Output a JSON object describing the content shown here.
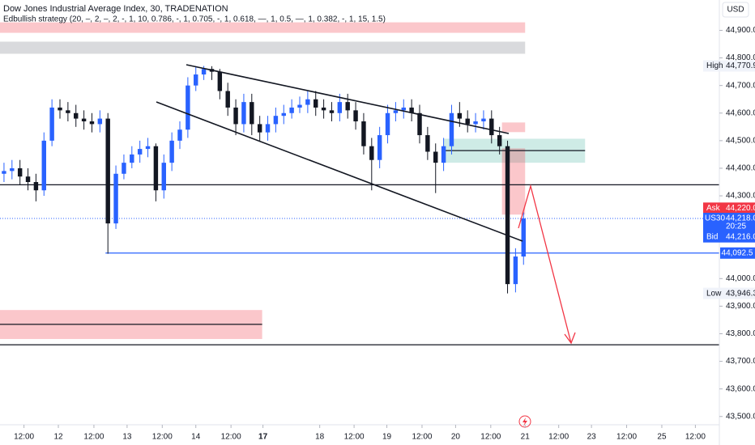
{
  "chart_data": {
    "type": "candlestick",
    "title": "Dow Jones Industrial Average Index, 30, TRADENATION",
    "indicator": "Edbullish strategy (20, –, 2, –, 2, -, 1, 10, 0.786, -, 1, 0.705, -, 1, 0.618, —, 1, 0.5, —, 1, 0.382, -, 1, 15, 1.5)",
    "currency": "USD",
    "xlim": [
      0,
      90
    ],
    "xticks": [
      {
        "value": 3,
        "label": "12:00"
      },
      {
        "value": 7.3,
        "label": "12"
      },
      {
        "value": 11.75,
        "label": "12:00"
      },
      {
        "value": 15.9,
        "label": "13"
      },
      {
        "value": 20.3,
        "label": "12:00"
      },
      {
        "value": 24.5,
        "label": "14"
      },
      {
        "value": 28.9,
        "label": "12:00"
      },
      {
        "value": 32.9,
        "label": "17",
        "bold": true
      },
      {
        "value": 40,
        "label": "18"
      },
      {
        "value": 44.3,
        "label": "12:00"
      },
      {
        "value": 48.4,
        "label": "19"
      },
      {
        "value": 52.8,
        "label": "12:00"
      },
      {
        "value": 57,
        "label": "20"
      },
      {
        "value": 61.4,
        "label": "12:00"
      },
      {
        "value": 65.7,
        "label": "21"
      },
      {
        "value": 69.9,
        "label": "12:00"
      },
      {
        "value": 74,
        "label": "23"
      },
      {
        "value": 78.4,
        "label": "12:00"
      },
      {
        "value": 82.8,
        "label": "25"
      },
      {
        "value": 87,
        "label": "12:00"
      }
    ],
    "ylim": [
      43470,
      45010
    ],
    "yticks": [
      {
        "value": 44900,
        "label": "44,900.0"
      },
      {
        "value": 44800,
        "label": "44,800.0"
      },
      {
        "value": 44700,
        "label": "44,700.0"
      },
      {
        "value": 44600,
        "label": "44,600.0"
      },
      {
        "value": 44500,
        "label": "44,500.0"
      },
      {
        "value": 44400,
        "label": "44,400.0"
      },
      {
        "value": 44300,
        "label": "44,300.0"
      },
      {
        "value": 44000,
        "label": "44,000.0"
      },
      {
        "value": 43900,
        "label": "43,900.0"
      },
      {
        "value": 43800,
        "label": "43,800.0"
      },
      {
        "value": 43700,
        "label": "43,700.0"
      },
      {
        "value": 43600,
        "label": "43,600.0"
      },
      {
        "value": 43500,
        "label": "43,500.0"
      }
    ],
    "up_color": "#2962ff",
    "down_color": "#131722",
    "open": [
      44380,
      44390,
      44400,
      44370,
      44350,
      44320,
      44500,
      44620,
      44610,
      44600,
      44580,
      44570,
      44560,
      44580,
      44200,
      44380,
      44420,
      44450,
      44470,
      44480,
      44320,
      44420,
      44500,
      44540,
      44700,
      44740,
      44760,
      44750,
      44680,
      44620,
      44560,
      44640,
      44560,
      44530,
      44560,
      44590,
      44600,
      44620,
      44630,
      44650,
      44620,
      44610,
      44600,
      44640,
      44610,
      44570,
      44480,
      44430,
      44520,
      44600,
      44610,
      44620,
      44600,
      44520,
      44460,
      44420,
      44480,
      44600,
      44580,
      44560,
      44570,
      44580,
      44520,
      44480,
      43980,
      44080
    ],
    "high": [
      44420,
      44430,
      44430,
      44400,
      44380,
      44530,
      44650,
      44650,
      44640,
      44630,
      44610,
      44600,
      44610,
      44600,
      44410,
      44450,
      44480,
      44500,
      44510,
      44490,
      44450,
      44530,
      44570,
      44730,
      44770,
      44770.9,
      44770,
      44760,
      44710,
      44650,
      44670,
      44670,
      44590,
      44590,
      44620,
      44630,
      44650,
      44660,
      44680,
      44680,
      44650,
      44640,
      44670,
      44670,
      44640,
      44600,
      44510,
      44550,
      44630,
      44640,
      44650,
      44650,
      44630,
      44550,
      44490,
      44510,
      44630,
      44640,
      44610,
      44600,
      44610,
      44610,
      44550,
      44500,
      44110,
      44240
    ],
    "low": [
      44350,
      44360,
      44340,
      44320,
      44280,
      44300,
      44480,
      44580,
      44570,
      44550,
      44540,
      44530,
      44530,
      44090,
      44180,
      44360,
      44400,
      44420,
      44440,
      44280,
      44290,
      44390,
      44470,
      44510,
      44680,
      44720,
      44720,
      44650,
      44590,
      44520,
      44530,
      44520,
      44500,
      44500,
      44530,
      44560,
      44580,
      44600,
      44600,
      44590,
      44580,
      44570,
      44570,
      44580,
      44540,
      44450,
      44320,
      44400,
      44490,
      44570,
      44580,
      44570,
      44490,
      44430,
      44310,
      44390,
      44450,
      44550,
      44530,
      44530,
      44540,
      44490,
      44450,
      43946.3,
      43950,
      44050
    ],
    "close": [
      44390,
      44400,
      44370,
      44350,
      44320,
      44500,
      44620,
      44610,
      44600,
      44580,
      44570,
      44560,
      44580,
      44200,
      44380,
      44420,
      44450,
      44470,
      44480,
      44320,
      44420,
      44500,
      44540,
      44700,
      44740,
      44760,
      44750,
      44680,
      44620,
      44560,
      44640,
      44560,
      44530,
      44560,
      44590,
      44600,
      44620,
      44630,
      44650,
      44620,
      44610,
      44600,
      44640,
      44610,
      44570,
      44480,
      44430,
      44520,
      44600,
      44610,
      44620,
      44600,
      44520,
      44460,
      44420,
      44480,
      44600,
      44580,
      44560,
      44570,
      44580,
      44520,
      44480,
      43980,
      44080,
      44218
    ],
    "zones": [
      {
        "x": [
          0,
          65.7
        ],
        "y": [
          44891,
          44929
        ],
        "color": "rgba(242,54,69,0.28)"
      },
      {
        "x": [
          0,
          65.7
        ],
        "y": [
          44815,
          44859
        ],
        "color": "rgba(120,123,134,0.28)"
      },
      {
        "x": [
          0,
          32.8
        ],
        "y": [
          43781,
          43886
        ],
        "color": "rgba(242,54,69,0.28)"
      },
      {
        "x": [
          55.5,
          73.2
        ],
        "y": [
          44420,
          44507
        ],
        "color": "rgba(8,153,129,0.2)"
      },
      {
        "x": [
          62.8,
          65.7
        ],
        "y": [
          44531,
          44566
        ],
        "color": "rgba(242,54,69,0.28)"
      },
      {
        "x": [
          62.8,
          65.7
        ],
        "y": [
          44232,
          44472
        ],
        "color": "rgba(242,54,69,0.28)"
      }
    ],
    "levels": [
      {
        "x": [
          0,
          90
        ],
        "value": 44340,
        "color": "#131722"
      },
      {
        "x": [
          13.2,
          90
        ],
        "value": 44092.5,
        "color": "#2962ff",
        "label": "44,092.5"
      },
      {
        "x": [
          0,
          90
        ],
        "value": 43760,
        "color": "#131722"
      },
      {
        "x": [
          0,
          32.8
        ],
        "value": 43834,
        "color": "#131722"
      },
      {
        "x": [
          55.5,
          73.2
        ],
        "value": 44464,
        "color": "#131722"
      }
    ],
    "high_marker": {
      "name": "High",
      "value": 44770.9,
      "label": "44,770.9"
    },
    "low_marker": {
      "name": "Low",
      "value": 43946.3,
      "label": "43,946.3"
    },
    "ask": {
      "name": "Ask",
      "value": 44220,
      "label": "44,220.0"
    },
    "last": {
      "name": "US30",
      "value": 44218,
      "label": "44,218.0",
      "countdown": "20:25"
    },
    "bid": {
      "name": "Bid",
      "value": 44216,
      "label": "44,216.0"
    }
  }
}
